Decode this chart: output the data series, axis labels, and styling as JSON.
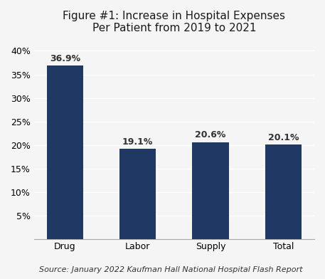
{
  "categories": [
    "Drug",
    "Labor",
    "Supply",
    "Total"
  ],
  "values": [
    36.9,
    19.1,
    20.6,
    20.1
  ],
  "bar_color": "#1F3864",
  "title_bold": "Figure #1:",
  "title_regular": " Increase in Hospital Expenses\nPer Patient from 2019 to 2021",
  "labels": [
    "36.9%",
    "19.1%",
    "20.6%",
    "20.1%"
  ],
  "ylim": [
    0,
    42
  ],
  "yticks": [
    5,
    10,
    15,
    20,
    25,
    30,
    35,
    40
  ],
  "source_text": "Source: January 2022 Kaufman Hall National Hospital Flash Report",
  "background_color": "#f5f5f5",
  "bar_width": 0.5,
  "label_fontsize": 9,
  "tick_fontsize": 9,
  "source_fontsize": 8,
  "title_fontsize": 11
}
